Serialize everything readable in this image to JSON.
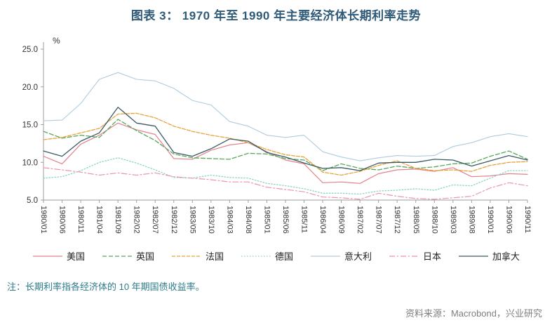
{
  "title": "图表 3： 1970 年至 1990 年主要经济体长期利率走势",
  "note": "注：长期利率指各经济体的 10 年期国债收益率。",
  "source": "资料来源：Macrobond，兴业研究",
  "colors": {
    "title": "#2F5A78",
    "note": "#2C7C8A",
    "source": "#7F7F7F",
    "axis": "#9E9E9E",
    "tick_label": "#333333"
  },
  "chart_data": {
    "type": "line",
    "title": "1970 年至 1990 年主要经济体长期利率走势",
    "ylabel": "%",
    "ylim": [
      5.0,
      25.0
    ],
    "yticks": [
      5.0,
      10.0,
      15.0,
      20.0,
      25.0
    ],
    "grid": false,
    "legend_position": "bottom",
    "categories": [
      "1980/01",
      "1980/06",
      "1980/11",
      "1981/04",
      "1981/09",
      "1982/02",
      "1982/07",
      "1982/12",
      "1983/05",
      "1983/10",
      "1984/03",
      "1984/08",
      "1985/01",
      "1985/06",
      "1985/11",
      "1986/04",
      "1986/09",
      "1987/02",
      "1987/07",
      "1987/12",
      "1988/05",
      "1988/10",
      "1989/03",
      "1989/08",
      "1990/01",
      "1990/06",
      "1990/11"
    ],
    "series": [
      {
        "id": "us",
        "name": "美国",
        "color": "#E3828E",
        "dash": "",
        "width": 1.2,
        "values": [
          10.8,
          9.8,
          12.4,
          13.6,
          15.2,
          14.3,
          13.7,
          10.5,
          10.4,
          11.6,
          12.3,
          12.6,
          11.4,
          10.3,
          9.8,
          7.3,
          7.4,
          7.2,
          8.5,
          9.0,
          9.1,
          8.8,
          9.3,
          8.1,
          8.2,
          8.5,
          8.4
        ]
      },
      {
        "id": "uk",
        "name": "英国",
        "color": "#57A85C",
        "dash": "6 3",
        "width": 1.3,
        "values": [
          14.1,
          13.2,
          13.6,
          13.3,
          15.7,
          14.2,
          12.9,
          11.1,
          10.6,
          10.5,
          10.4,
          11.2,
          11.1,
          10.5,
          10.3,
          8.9,
          9.8,
          9.2,
          9.0,
          9.5,
          9.2,
          9.4,
          9.8,
          9.9,
          10.8,
          11.5,
          10.4
        ]
      },
      {
        "id": "france",
        "name": "法国",
        "color": "#E8A33C",
        "dash": "5 2",
        "width": 1.3,
        "values": [
          13.0,
          13.3,
          13.9,
          14.5,
          16.4,
          16.5,
          15.9,
          14.8,
          14.1,
          13.6,
          13.2,
          12.6,
          11.7,
          11.0,
          10.7,
          8.7,
          8.3,
          8.8,
          9.6,
          10.2,
          9.2,
          8.9,
          9.0,
          8.8,
          9.6,
          10.0,
          10.1
        ]
      },
      {
        "id": "germany",
        "name": "德国",
        "color": "#8BD5C9",
        "dash": "1.5 2.5",
        "width": 1.3,
        "values": [
          7.9,
          8.1,
          8.9,
          10.0,
          10.6,
          9.9,
          9.0,
          8.0,
          7.9,
          8.3,
          8.0,
          7.9,
          7.2,
          6.9,
          6.5,
          5.9,
          5.9,
          5.8,
          6.2,
          6.3,
          6.5,
          6.3,
          7.0,
          6.9,
          7.9,
          8.9,
          8.9
        ]
      },
      {
        "id": "italy",
        "name": "意大利",
        "color": "#AECBE0",
        "dash": "",
        "width": 1.1,
        "values": [
          15.5,
          15.6,
          17.8,
          21.0,
          21.9,
          21.0,
          20.8,
          19.8,
          18.2,
          17.6,
          15.4,
          14.8,
          13.6,
          13.3,
          13.6,
          11.4,
          10.7,
          10.2,
          10.6,
          10.9,
          10.8,
          10.9,
          12.1,
          12.6,
          13.4,
          13.8,
          13.4
        ]
      },
      {
        "id": "japan",
        "name": "日本",
        "color": "#EE94A8",
        "dash": "8 3 2 3",
        "width": 1.2,
        "values": [
          9.3,
          9.0,
          8.7,
          8.3,
          8.6,
          8.3,
          8.6,
          8.1,
          7.9,
          7.7,
          7.4,
          7.4,
          6.7,
          6.4,
          6.1,
          5.4,
          5.3,
          5.1,
          5.9,
          5.5,
          5.2,
          5.1,
          5.3,
          5.5,
          6.6,
          7.3,
          6.9
        ]
      },
      {
        "id": "canada",
        "name": "加拿大",
        "color": "#3B5A64",
        "dash": "",
        "width": 1.3,
        "values": [
          11.5,
          10.8,
          12.8,
          13.9,
          17.3,
          15.2,
          14.8,
          11.3,
          10.8,
          11.8,
          13.1,
          12.8,
          11.3,
          10.7,
          9.9,
          9.2,
          9.3,
          8.9,
          9.9,
          10.0,
          10.0,
          10.4,
          10.3,
          9.5,
          10.2,
          10.9,
          10.3
        ]
      }
    ]
  }
}
